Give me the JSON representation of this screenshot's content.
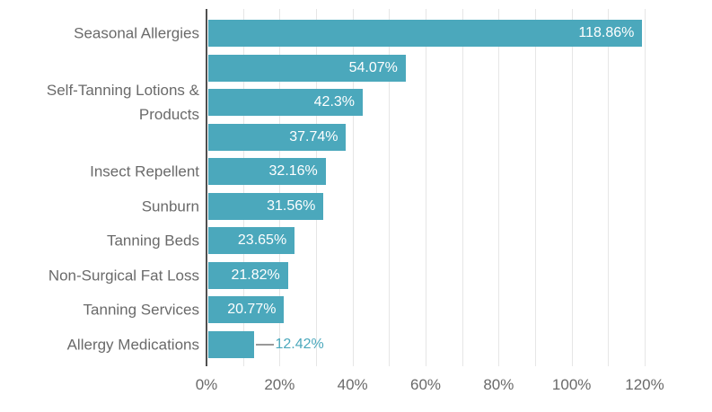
{
  "chart_data": {
    "type": "bar",
    "orientation": "horizontal",
    "title": "",
    "xlabel": "",
    "ylabel": "",
    "legend": "none",
    "grid": "vertical-light-every-10pct",
    "categories": [
      "Seasonal Allergies",
      "",
      "Self-Tanning Lotions & Products",
      "",
      "Insect Repellent",
      "Sunburn",
      "Tanning Beds",
      "Non-Surgical Fat Loss",
      "Tanning Services",
      "Allergy Medications"
    ],
    "values": [
      118.86,
      54.07,
      42.3,
      37.74,
      32.16,
      31.56,
      23.65,
      21.82,
      20.77,
      12.42
    ],
    "value_labels": [
      "118.86%",
      "54.07%",
      "42.3%",
      "37.74%",
      "32.16%",
      "31.56%",
      "23.65%",
      "21.82%",
      "20.77%",
      "12.42%"
    ],
    "value_label_position": [
      "inside",
      "inside",
      "inside",
      "inside",
      "inside",
      "inside",
      "inside",
      "inside",
      "inside",
      "outside"
    ],
    "x_axis": {
      "tick_labels": [
        "0%",
        "20%",
        "40%",
        "60%",
        "80%",
        "100%",
        "120%"
      ],
      "tick_values": [
        0,
        20,
        40,
        60,
        80,
        100,
        120
      ],
      "gridline_values": [
        10,
        20,
        30,
        40,
        50,
        60,
        70,
        80,
        90,
        100,
        110,
        120
      ],
      "xlim": [
        0,
        128.6
      ]
    }
  },
  "colors": {
    "bar": "#4ba8bc",
    "value_label_inside": "#ffffff",
    "value_label_outside": "#4ba8bc",
    "category_label": "#6a6a6a",
    "tick_label": "#6a6a6a",
    "gridline": "#e6e6e6",
    "axis_line": "#4f4f4f",
    "leader_line": "#999999",
    "background": "#ffffff"
  }
}
